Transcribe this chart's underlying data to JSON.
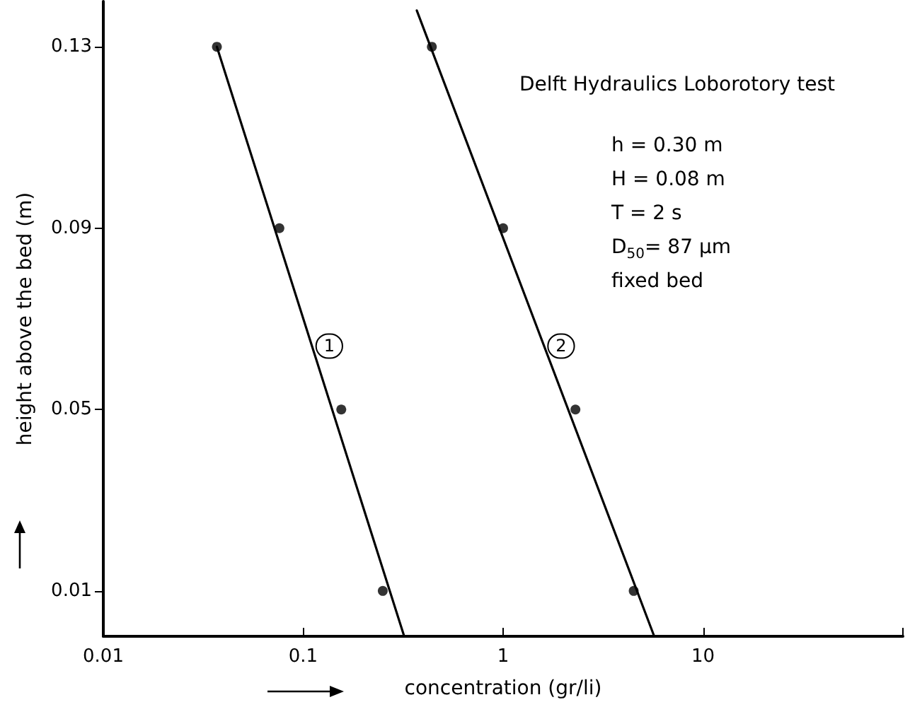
{
  "chart_data": {
    "type": "scatter",
    "title": "Delft Hydraulics Loborotory test",
    "xlabel": "concentration (gr/li)",
    "ylabel": "height above the bed (m)",
    "annotations": [
      {
        "text": "1",
        "x": 0.135,
        "y": 0.064
      },
      {
        "text": "2",
        "x": 1.95,
        "y": 0.064
      },
      "h = 0.30 m",
      "H = 0.08 m",
      "T = 2 s",
      "D$_{50}$= 87 µm",
      "fixed bed"
    ],
    "log": "x",
    "xlim": [
      0.01,
      100
    ],
    "xticks": [
      0.01,
      0.1,
      1,
      10,
      {
        "value": 100,
        "label": null
      }
    ],
    "ylim": [
      0,
      0.14
    ],
    "yticks": [
      0.01,
      0.05,
      0.09,
      0.13
    ],
    "marker": "circle",
    "series": [
      {
        "color": "#000000",
        "x": [
          0.037,
          0.076,
          0.155,
          0.25
        ],
        "values": [
          0.13,
          0.09,
          0.05,
          0.01
        ]
      },
      {
        "color": "#000000",
        "x": [
          0.44,
          1.0,
          2.3,
          4.5
        ],
        "values": [
          0.13,
          0.09,
          0.05,
          0.01
        ]
      },
      {
        "type": "line",
        "marker": "none",
        "line_style": "solid",
        "color": "#000000",
        "x": [
          0.037,
          0.32
        ],
        "values": [
          0.13,
          0
        ]
      },
      {
        "type": "line",
        "marker": "none",
        "line_style": "solid",
        "color": "#000000",
        "x": [
          0.37,
          5.7
        ],
        "values": [
          0.138,
          0
        ]
      }
    ]
  }
}
